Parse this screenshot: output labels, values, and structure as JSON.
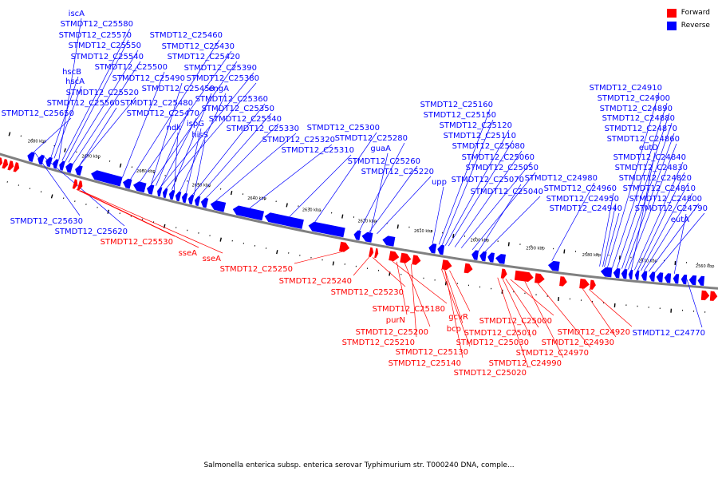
{
  "legend": [
    {
      "label": "Forward",
      "color": "#ff0000"
    },
    {
      "label": "Reverse",
      "color": "#0000ff"
    }
  ],
  "caption": "Salmonella enterica subsp. enterica serovar Typhimurium str. T000240 DNA, comple...",
  "colors": {
    "forward": "#ff0000",
    "reverse": "#0000ff",
    "backbone": "#808080"
  },
  "kbp_labels": [
    "2680 kbp",
    "2670 kbp",
    "2660 kbp",
    "2650 kbp",
    "2640 kbp",
    "2630 kbp",
    "2620 kbp",
    "2610 kbp",
    "2600 kbp",
    "2590 kbp",
    "2580 kbp",
    "2570 kbp",
    "2560 kbp"
  ],
  "reverse_labels": [
    "iscA",
    "STMDT12_C25580",
    "STMDT12_C25570",
    "STMDT12_C25550",
    "STMDT12_C25540",
    "STMDT12_C25500",
    "hscB",
    "hscA",
    "STMDT12_C25520",
    "STMDT12_C25560",
    "STMDT12_C25650",
    "STMDT12_C25460",
    "STMDT12_C25430",
    "STMDT12_C25420",
    "STMDT12_C25390",
    "STMDT12_C25490",
    "STMDT12_C25380",
    "STMDT12_C25450",
    "engA",
    "STMDT12_C25480",
    "STMDT12_C25360",
    "STMDT12_C25470",
    "STMDT12_C25350",
    "STMDT12_C25340",
    "ndk",
    "ispG",
    "STMDT12_C25330",
    "hisS",
    "STMDT12_C25300",
    "STMDT12_C25320",
    "STMDT12_C25280",
    "STMDT12_C25310",
    "guaA",
    "STMDT12_C25260",
    "STMDT12_C25220",
    "STMDT12_C25160",
    "STMDT12_C25150",
    "STMDT12_C25120",
    "STMDT12_C25110",
    "STMDT12_C25080",
    "STMDT12_C25060",
    "STMDT12_C25050",
    "STMDT12_C25070",
    "upp",
    "STMDT12_C25040",
    "STMDT12_C24910",
    "STMDT12_C24900",
    "STMDT12_C24890",
    "STMDT12_C24880",
    "STMDT12_C24870",
    "STMDT12_C24860",
    "eutD",
    "STMDT12_C24840",
    "STMDT12_C24830",
    "STMDT12_C24980",
    "STMDT12_C24820",
    "STMDT12_C24960",
    "STMDT12_C24810",
    "STMDT12_C24950",
    "STMDT12_C24800",
    "STMDT12_C24940",
    "STMDT12_C24790",
    "eutA",
    "STMDT12_C25630",
    "STMDT12_C25620",
    "STMDT12_C24770"
  ],
  "forward_labels": [
    "STMDT12_C25530",
    "sseA",
    "sseA",
    "STMDT12_C25250",
    "STMDT12_C25240",
    "STMDT12_C25230",
    "STMDT12_C25180",
    "purN",
    "STMDT12_C25200",
    "STMDT12_C25210",
    "gcvR",
    "bcp",
    "STMDT12_C25130",
    "STMDT12_C25140",
    "STMDT12_C25000",
    "STMDT12_C25010",
    "STMDT12_C25030",
    "STMDT12_C24920",
    "STMDT12_C24930",
    "STMDT12_C24970",
    "STMDT12_C24990",
    "STMDT12_C25020"
  ]
}
